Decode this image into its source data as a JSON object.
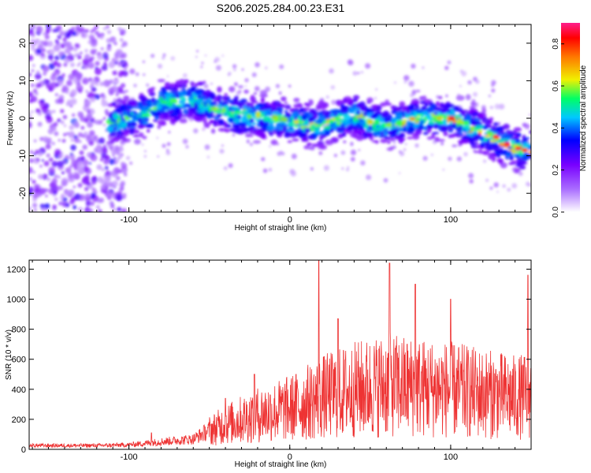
{
  "title": "S206.2025.284.00.23.E31",
  "chart_data": [
    {
      "type": "heatmap",
      "xlabel": "Height of straight line (km)",
      "ylabel": "Frequency (Hz)",
      "xlim": [
        -162,
        150
      ],
      "ylim": [
        -25,
        25
      ],
      "xticks": [
        -100,
        0,
        100
      ],
      "yticks": [
        -20,
        -10,
        0,
        10,
        20
      ],
      "colorbar": {
        "label": "Normalized spectral amplitude",
        "range": [
          0.0,
          0.9
        ],
        "ticks": [
          0.0,
          0.2,
          0.4,
          0.6,
          0.8
        ],
        "colors": [
          "#ffffff",
          "#7a00ff",
          "#0000ff",
          "#00c8ff",
          "#00ff60",
          "#f0f000",
          "#ff7f00",
          "#ff0000",
          "#ff2080"
        ]
      },
      "ridge": {
        "description_points": [
          [
            -110,
            -1
          ],
          [
            -90,
            1
          ],
          [
            -80,
            4
          ],
          [
            -60,
            5
          ],
          [
            -40,
            1.5
          ],
          [
            -20,
            0.5
          ],
          [
            0,
            -1
          ],
          [
            20,
            -2
          ],
          [
            40,
            1
          ],
          [
            50,
            -1
          ],
          [
            60,
            -2
          ],
          [
            80,
            0
          ],
          [
            100,
            0
          ],
          [
            120,
            -4
          ],
          [
            140,
            -8
          ],
          [
            148,
            -8.5
          ]
        ]
      }
    },
    {
      "type": "line",
      "xlabel": "Height of straight line (km)",
      "ylabel": "SNR (10 * v/v)",
      "xlim": [
        -162,
        150
      ],
      "ylim": [
        0,
        1260
      ],
      "xticks": [
        -100,
        0,
        100
      ],
      "yticks": [
        0,
        200,
        400,
        600,
        800,
        1000,
        1200
      ],
      "series": [
        {
          "name": "SNR",
          "color": "#ee3333",
          "envelope": [
            [
              -162,
              30
            ],
            [
              -120,
              30
            ],
            [
              -100,
              35
            ],
            [
              -80,
              60
            ],
            [
              -60,
              80
            ],
            [
              -50,
              150
            ],
            [
              -40,
              200
            ],
            [
              -20,
              280
            ],
            [
              0,
              330
            ],
            [
              20,
              420
            ],
            [
              40,
              480
            ],
            [
              60,
              520
            ],
            [
              80,
              500
            ],
            [
              100,
              480
            ],
            [
              120,
              450
            ],
            [
              140,
              420
            ],
            [
              150,
              430
            ]
          ],
          "peaks": [
            [
              -86,
              110
            ],
            [
              -40,
              340
            ],
            [
              -22,
              500
            ],
            [
              18,
              1260
            ],
            [
              30,
              870
            ],
            [
              62,
              1240
            ],
            [
              78,
              1100
            ],
            [
              100,
              1000
            ],
            [
              148,
              1160
            ]
          ]
        }
      ]
    }
  ]
}
